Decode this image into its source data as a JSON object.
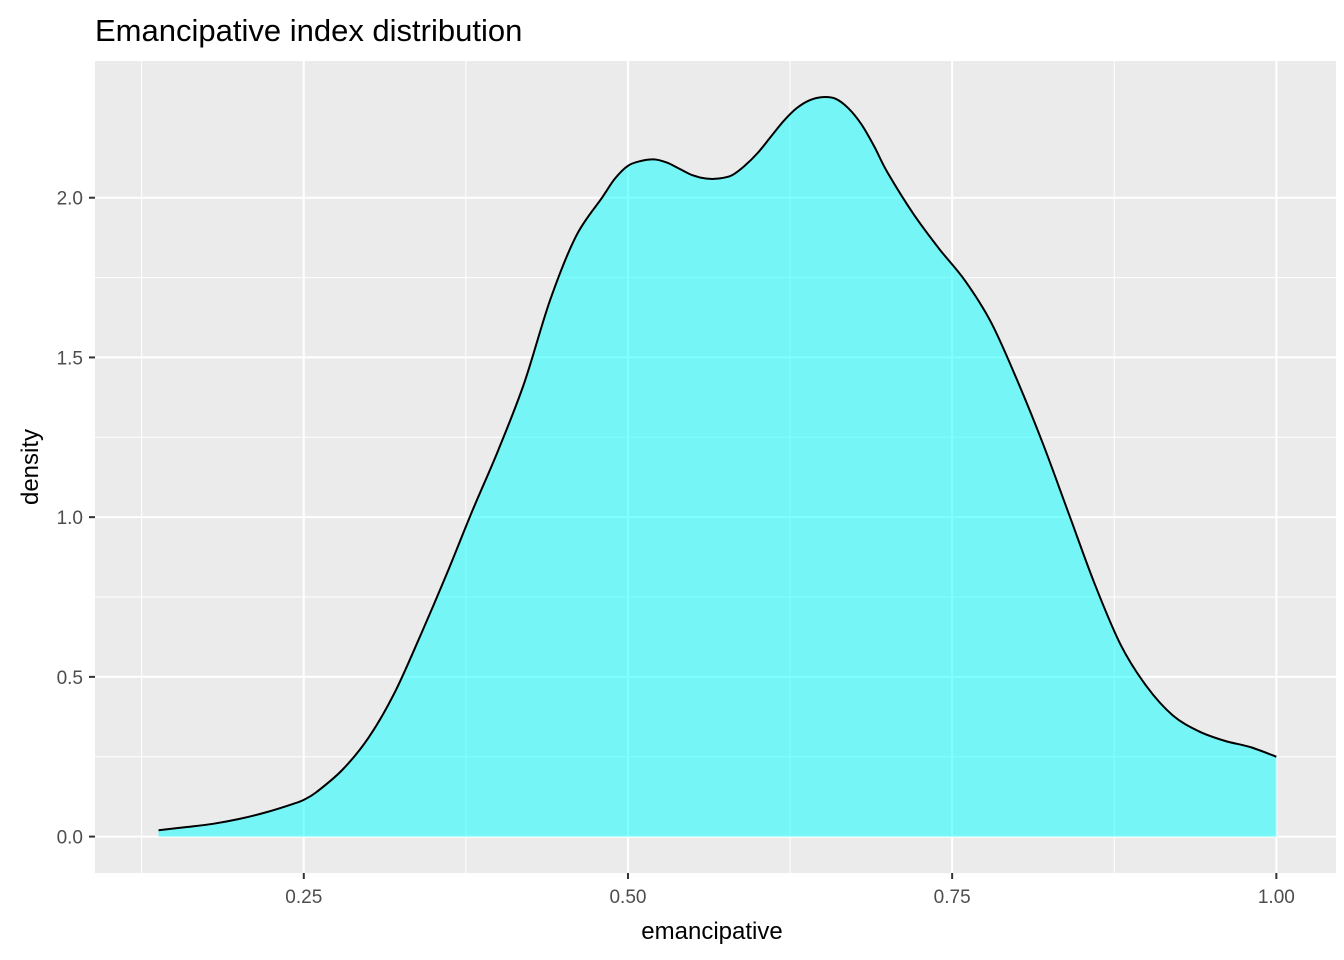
{
  "chart_data": {
    "type": "area",
    "title": "Emancipative index distribution",
    "xlabel": "emancipative",
    "ylabel": "density",
    "xlim": [
      0.089,
      1.046
    ],
    "ylim": [
      -0.114,
      2.428
    ],
    "x_ticks": [
      0.25,
      0.5,
      0.75,
      1.0
    ],
    "x_tick_labels": [
      "0.25",
      "0.50",
      "0.75",
      "1.00"
    ],
    "y_ticks": [
      0.0,
      0.5,
      1.0,
      1.5,
      2.0
    ],
    "y_tick_labels": [
      "0.0",
      "0.5",
      "1.0",
      "1.5",
      "2.0"
    ],
    "grid": true,
    "panel_background": "#ebebeb",
    "fill_color": "#00ffff",
    "fill_opacity": 0.5,
    "line_color": "#000000",
    "series": [
      {
        "x": [
          0.138,
          0.16,
          0.18,
          0.2,
          0.22,
          0.24,
          0.25,
          0.26,
          0.28,
          0.3,
          0.32,
          0.34,
          0.36,
          0.38,
          0.4,
          0.42,
          0.44,
          0.46,
          0.48,
          0.49,
          0.5,
          0.51,
          0.52,
          0.53,
          0.54,
          0.55,
          0.56,
          0.57,
          0.58,
          0.59,
          0.6,
          0.61,
          0.62,
          0.63,
          0.64,
          0.65,
          0.66,
          0.67,
          0.68,
          0.69,
          0.7,
          0.72,
          0.74,
          0.76,
          0.78,
          0.8,
          0.82,
          0.84,
          0.86,
          0.88,
          0.9,
          0.92,
          0.94,
          0.96,
          0.98,
          1.0
        ],
        "y": [
          0.02,
          0.03,
          0.04,
          0.055,
          0.075,
          0.1,
          0.115,
          0.14,
          0.21,
          0.31,
          0.45,
          0.63,
          0.82,
          1.02,
          1.21,
          1.42,
          1.68,
          1.88,
          2.0,
          2.06,
          2.1,
          2.115,
          2.12,
          2.11,
          2.09,
          2.07,
          2.06,
          2.06,
          2.07,
          2.1,
          2.14,
          2.19,
          2.24,
          2.28,
          2.305,
          2.315,
          2.31,
          2.28,
          2.23,
          2.16,
          2.08,
          1.95,
          1.84,
          1.74,
          1.61,
          1.43,
          1.23,
          1.01,
          0.79,
          0.6,
          0.47,
          0.38,
          0.33,
          0.3,
          0.28,
          0.25
        ]
      }
    ]
  }
}
